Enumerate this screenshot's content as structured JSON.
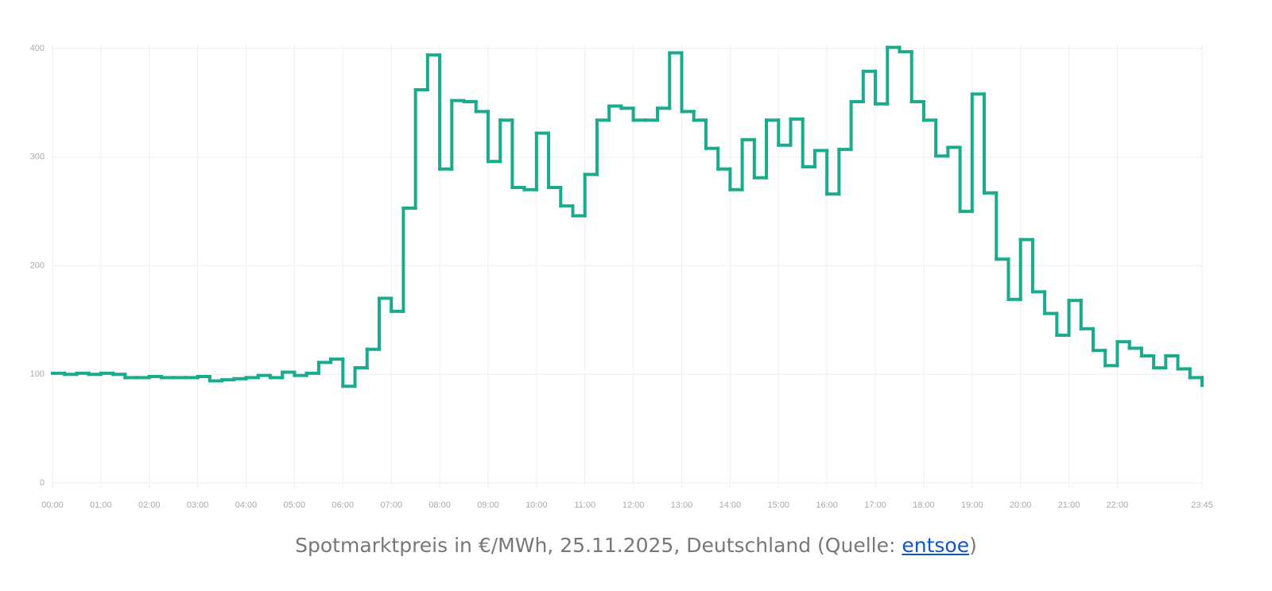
{
  "chart_data": {
    "type": "step",
    "x": [
      0,
      0.25,
      0.5,
      0.75,
      1,
      1.25,
      1.5,
      1.75,
      2,
      2.25,
      2.5,
      2.75,
      3,
      3.25,
      3.5,
      3.75,
      4,
      4.25,
      4.5,
      4.75,
      5,
      5.25,
      5.5,
      5.75,
      6,
      6.25,
      6.5,
      6.75,
      7,
      7.25,
      7.5,
      7.75,
      8,
      8.25,
      8.5,
      8.75,
      9,
      9.25,
      9.5,
      9.75,
      10,
      10.25,
      10.5,
      10.75,
      11,
      11.25,
      11.5,
      11.75,
      12,
      12.25,
      12.5,
      12.75,
      13,
      13.25,
      13.5,
      13.75,
      14,
      14.25,
      14.5,
      14.75,
      15,
      15.25,
      15.5,
      15.75,
      16,
      16.25,
      16.5,
      16.75,
      17,
      17.25,
      17.5,
      17.75,
      18,
      18.25,
      18.5,
      18.75,
      19,
      19.25,
      19.5,
      19.75,
      20,
      20.25,
      20.5,
      20.75,
      21,
      21.25,
      21.5,
      21.75,
      22,
      22.25,
      22.5,
      22.75,
      23,
      23.25,
      23.5,
      23.75
    ],
    "values": [
      101,
      100,
      101,
      100,
      101,
      100,
      97,
      97,
      98,
      97,
      97,
      97,
      98,
      94,
      95,
      96,
      97,
      99,
      97,
      102,
      99,
      101,
      111,
      114,
      89,
      106,
      123,
      170,
      158,
      253,
      362,
      394,
      289,
      352,
      351,
      342,
      296,
      334,
      272,
      270,
      322,
      272,
      255,
      246,
      284,
      334,
      347,
      345,
      334,
      334,
      345,
      396,
      342,
      334,
      308,
      289,
      270,
      316,
      281,
      334,
      311,
      335,
      291,
      306,
      266,
      307,
      351,
      379,
      349,
      401,
      397,
      351,
      334,
      301,
      309,
      250,
      358,
      267,
      206,
      169,
      224,
      176,
      156,
      136,
      168,
      142,
      122,
      108,
      130,
      124,
      117,
      106,
      117,
      105,
      97,
      90
    ],
    "color": "#1aab8f",
    "xlim": [
      0,
      23.75
    ],
    "xticks": [
      {
        "value": 0,
        "label": "00:00"
      },
      {
        "value": 1,
        "label": "01:00"
      },
      {
        "value": 2,
        "label": "02:00"
      },
      {
        "value": 3,
        "label": "03:00"
      },
      {
        "value": 4,
        "label": "04:00"
      },
      {
        "value": 5,
        "label": "05:00"
      },
      {
        "value": 6,
        "label": "06:00"
      },
      {
        "value": 7,
        "label": "07:00"
      },
      {
        "value": 8,
        "label": "08:00"
      },
      {
        "value": 9,
        "label": "09:00"
      },
      {
        "value": 10,
        "label": "10:00"
      },
      {
        "value": 11,
        "label": "11:00"
      },
      {
        "value": 12,
        "label": "12:00"
      },
      {
        "value": 13,
        "label": "13:00"
      },
      {
        "value": 14,
        "label": "14:00"
      },
      {
        "value": 15,
        "label": "15:00"
      },
      {
        "value": 16,
        "label": "16:00"
      },
      {
        "value": 17,
        "label": "17:00"
      },
      {
        "value": 18,
        "label": "18:00"
      },
      {
        "value": 19,
        "label": "19:00"
      },
      {
        "value": 20,
        "label": "20:00"
      },
      {
        "value": 21,
        "label": "21:00"
      },
      {
        "value": 22,
        "label": "22:00"
      },
      {
        "value": 23.75,
        "label": "23:45"
      }
    ],
    "ylim": [
      0,
      400
    ],
    "yticks": [
      0,
      100,
      200,
      300,
      400
    ],
    "grid": true
  },
  "caption": {
    "prefix": "Spotmarktpreis in €/MWh, 25.11.2025, Deutschland (Quelle: ",
    "link": "entsoe",
    "suffix": ")"
  }
}
